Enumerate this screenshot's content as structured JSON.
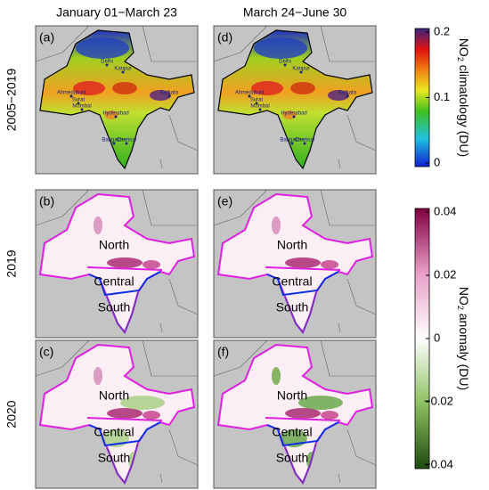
{
  "columns": [
    "January 01−March 23",
    "March 24−June 30"
  ],
  "rows": [
    "2005−2019",
    "2019",
    "2020"
  ],
  "panels": [
    "(a)",
    "(d)",
    "(b)",
    "(e)",
    "(c)",
    "(f)"
  ],
  "regions": [
    "North",
    "Central",
    "South"
  ],
  "cities": [
    "Delhi",
    "Kanpur",
    "Kolkata",
    "Ahmedabad",
    "Surat",
    "Mumbai",
    "Hyderabad",
    "Bangalore",
    "Chennai"
  ],
  "colorbars": [
    {
      "title_main": "NO",
      "title_sub": "2",
      "title_rest": " climatology (DU)",
      "ticks": [
        0,
        0.1,
        0.2
      ]
    },
    {
      "title_main": "NO",
      "title_sub": "2",
      "title_rest": " anomaly (DU)",
      "ticks": [
        {
          "value": -0.04,
          "label": "−0.04"
        },
        {
          "value": -0.02,
          "label": "−0.02"
        },
        0,
        0.02,
        0.04
      ]
    }
  ]
}
